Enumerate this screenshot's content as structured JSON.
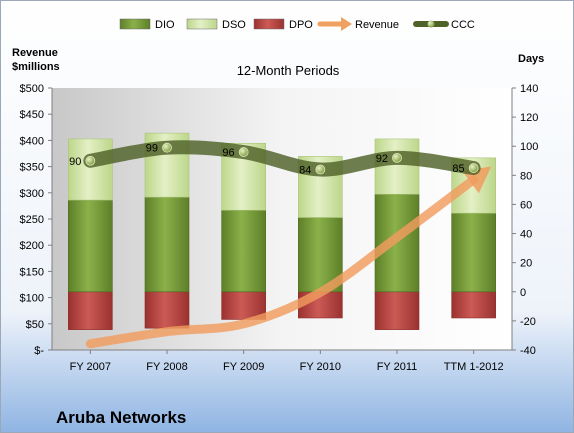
{
  "company": "Aruba Networks",
  "chart_data": {
    "type": "bar",
    "title": "12-Month Periods",
    "left_axis_title": [
      "Revenue",
      "$millions"
    ],
    "right_axis_title": "Days",
    "categories": [
      "FY 2007",
      "FY 2008",
      "FY 2009",
      "FY 2010",
      "FY 2011",
      "TTM 1-2012"
    ],
    "left_ticks": [
      "$-",
      "$50",
      "$100",
      "$150",
      "$200",
      "$250",
      "$300",
      "$350",
      "$400",
      "$450",
      "$500"
    ],
    "right_ticks": [
      "-40",
      "-20",
      "0",
      "20",
      "40",
      "60",
      "80",
      "100",
      "120",
      "140"
    ],
    "left_ylim": [
      0,
      500
    ],
    "right_ylim": [
      -40,
      140
    ],
    "legend_position": "top",
    "legend": [
      {
        "name": "DIO",
        "kind": "bar",
        "color": "#7fa33a"
      },
      {
        "name": "DSO",
        "kind": "bar",
        "color": "#d9eab0"
      },
      {
        "name": "DPO",
        "kind": "bar",
        "color": "#c0504d"
      },
      {
        "name": "Revenue",
        "kind": "arrow",
        "color": "#f0a060"
      },
      {
        "name": "CCC",
        "kind": "line",
        "color": "#4f6228"
      }
    ],
    "series": [
      {
        "name": "DIO",
        "axis": "right",
        "values": [
          63,
          65,
          56,
          51,
          67,
          54
        ]
      },
      {
        "name": "DSO",
        "axis": "right",
        "values": [
          42,
          44,
          46,
          42,
          38,
          38
        ]
      },
      {
        "name": "DPO",
        "axis": "right",
        "values": [
          -26,
          -25,
          -19,
          -18,
          -26,
          -18
        ]
      },
      {
        "name": "CCC",
        "axis": "right",
        "values": [
          90,
          99,
          96,
          84,
          92,
          85
        ],
        "labels": [
          "90",
          "99",
          "96",
          "84",
          "92",
          "85"
        ]
      },
      {
        "name": "Revenue",
        "axis": "left",
        "values": [
          12,
          35,
          50,
          110,
          215,
          325
        ]
      }
    ],
    "grid": false
  }
}
